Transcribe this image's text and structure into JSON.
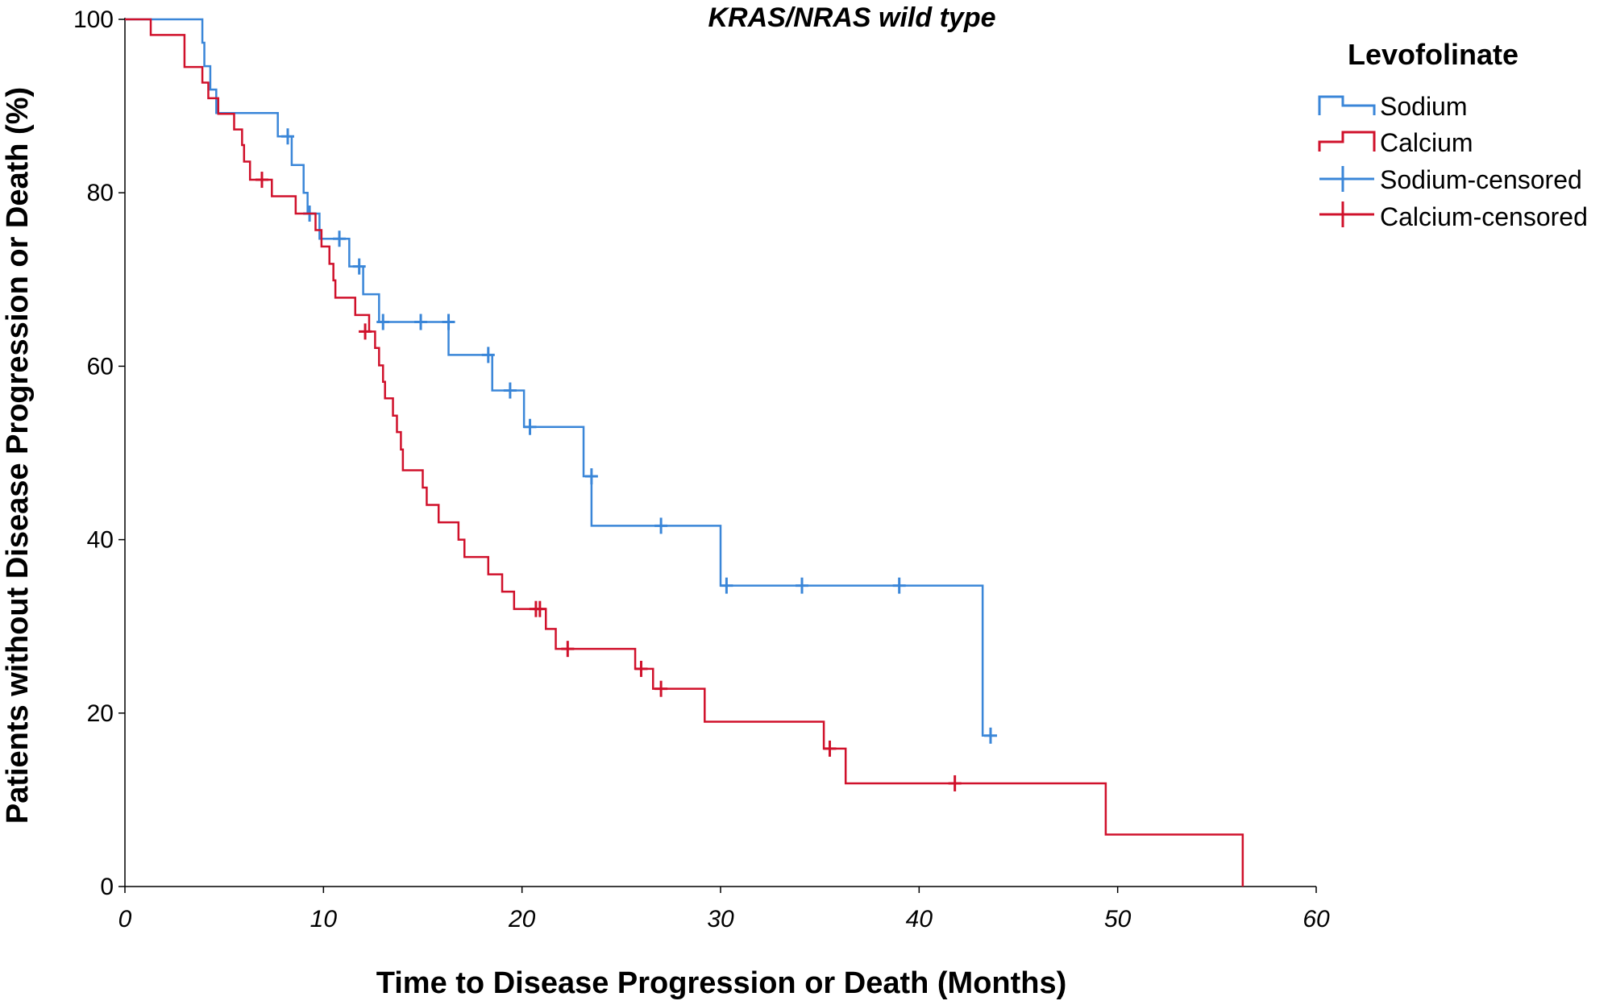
{
  "chart_data": {
    "type": "line",
    "title": "KRAS/NRAS wild type",
    "xlabel": "Time to Disease Progression or Death (Months)",
    "ylabel": "Patients without Disease Progression or Death (%)",
    "xlim": [
      0,
      60
    ],
    "ylim": [
      0,
      100
    ],
    "xticks": [
      "0",
      "10",
      "20",
      "30",
      "40",
      "50",
      "60"
    ],
    "yticks": [
      "0",
      "20",
      "40",
      "60",
      "80",
      "100"
    ],
    "grid": false,
    "legend": {
      "title": "Levofolinate",
      "placement": "top-right",
      "entries": [
        "Sodium",
        "Calcium",
        "Sodium-censored",
        "Calcium-censored"
      ]
    },
    "series": [
      {
        "name": "Sodium",
        "color": "#3a86d8",
        "steps": [
          [
            0,
            100
          ],
          [
            3.9,
            97.3
          ],
          [
            4.0,
            94.6
          ],
          [
            4.3,
            91.9
          ],
          [
            4.6,
            89.2
          ],
          [
            7.7,
            86.5
          ],
          [
            8.4,
            83.2
          ],
          [
            9.0,
            80.0
          ],
          [
            9.2,
            77.6
          ],
          [
            9.8,
            74.7
          ],
          [
            11.3,
            71.5
          ],
          [
            12.0,
            68.3
          ],
          [
            12.8,
            65.1
          ],
          [
            16.3,
            61.3
          ],
          [
            18.5,
            57.2
          ],
          [
            20.1,
            53.0
          ],
          [
            23.1,
            47.3
          ],
          [
            23.5,
            41.6
          ],
          [
            30.0,
            34.7
          ],
          [
            43.2,
            17.4
          ]
        ],
        "end_x": 43.6,
        "censored": [
          [
            8.2,
            86.5
          ],
          [
            9.3,
            77.6
          ],
          [
            10.8,
            74.7
          ],
          [
            11.8,
            71.5
          ],
          [
            13.0,
            65.1
          ],
          [
            14.9,
            65.1
          ],
          [
            16.3,
            65.1
          ],
          [
            18.3,
            61.3
          ],
          [
            19.4,
            57.2
          ],
          [
            20.4,
            53.0
          ],
          [
            23.5,
            47.3
          ],
          [
            27.0,
            41.6
          ],
          [
            30.3,
            34.7
          ],
          [
            34.1,
            34.7
          ],
          [
            39.0,
            34.7
          ],
          [
            43.6,
            17.4
          ]
        ]
      },
      {
        "name": "Calcium",
        "color": "#d0112b",
        "steps": [
          [
            0,
            100
          ],
          [
            1.3,
            98.2
          ],
          [
            3.0,
            94.5
          ],
          [
            3.9,
            92.7
          ],
          [
            4.2,
            90.9
          ],
          [
            4.7,
            89.1
          ],
          [
            5.5,
            87.3
          ],
          [
            5.9,
            85.5
          ],
          [
            6.0,
            83.6
          ],
          [
            6.3,
            81.5
          ],
          [
            7.4,
            79.6
          ],
          [
            8.6,
            77.6
          ],
          [
            9.6,
            75.7
          ],
          [
            9.9,
            73.8
          ],
          [
            10.3,
            71.8
          ],
          [
            10.5,
            69.9
          ],
          [
            10.6,
            67.9
          ],
          [
            11.6,
            65.9
          ],
          [
            12.3,
            64.0
          ],
          [
            12.6,
            62.1
          ],
          [
            12.8,
            60.1
          ],
          [
            13.0,
            58.2
          ],
          [
            13.1,
            56.3
          ],
          [
            13.5,
            54.3
          ],
          [
            13.7,
            52.4
          ],
          [
            13.9,
            50.4
          ],
          [
            14.0,
            48.0
          ],
          [
            15.0,
            46.0
          ],
          [
            15.2,
            44.0
          ],
          [
            15.8,
            42.0
          ],
          [
            16.8,
            40.0
          ],
          [
            17.1,
            38.0
          ],
          [
            18.3,
            36.0
          ],
          [
            19.0,
            34.0
          ],
          [
            19.6,
            32.0
          ],
          [
            21.2,
            29.7
          ],
          [
            21.7,
            27.4
          ],
          [
            25.7,
            25.1
          ],
          [
            26.6,
            22.8
          ],
          [
            29.2,
            19.0
          ],
          [
            35.2,
            15.9
          ],
          [
            36.3,
            11.9
          ],
          [
            49.4,
            6.0
          ],
          [
            56.3,
            0
          ]
        ],
        "end_x": 56.3,
        "censored": [
          [
            6.9,
            81.5
          ],
          [
            12.1,
            64.0
          ],
          [
            20.7,
            32.0
          ],
          [
            20.9,
            32.0
          ],
          [
            22.3,
            27.4
          ],
          [
            26.0,
            25.1
          ],
          [
            27.0,
            22.8
          ],
          [
            35.5,
            15.9
          ],
          [
            41.8,
            11.9
          ]
        ]
      }
    ]
  }
}
